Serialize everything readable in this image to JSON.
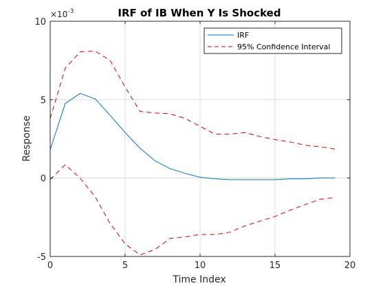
{
  "chart_data": {
    "type": "line",
    "title": "IRF of IB When Y Is Shocked",
    "xlabel": "Time Index",
    "ylabel": "Response",
    "y_exponent_label": "×10",
    "y_exponent_power": "-3",
    "xlim": [
      0,
      20
    ],
    "ylim": [
      -5,
      10
    ],
    "x_ticks": [
      0,
      5,
      10,
      15,
      20
    ],
    "y_ticks": [
      -5,
      0,
      5,
      10
    ],
    "grid": true,
    "legend_position": "top-right",
    "x": [
      0,
      1,
      2,
      3,
      4,
      5,
      6,
      7,
      8,
      9,
      10,
      11,
      12,
      13,
      14,
      15,
      16,
      17,
      18,
      19
    ],
    "series": [
      {
        "name": "IRF",
        "color": "#0072BD",
        "style": "solid",
        "values": [
          1.8,
          4.75,
          5.4,
          5.05,
          4.0,
          2.9,
          1.9,
          1.1,
          0.6,
          0.3,
          0.05,
          -0.05,
          -0.1,
          -0.1,
          -0.1,
          -0.1,
          -0.05,
          -0.05,
          0.0,
          0.0
        ]
      },
      {
        "name": "95% Confidence Interval",
        "color": "#D40000",
        "style": "dashed",
        "values": [
          3.8,
          7.0,
          8.05,
          8.1,
          7.5,
          5.8,
          4.25,
          4.15,
          4.1,
          3.8,
          3.3,
          2.8,
          2.8,
          2.9,
          2.65,
          2.45,
          2.3,
          2.1,
          2.0,
          1.85
        ]
      },
      {
        "name": "",
        "color": "#D40000",
        "style": "dashed",
        "values": [
          -0.1,
          0.85,
          0.0,
          -1.2,
          -2.9,
          -4.2,
          -4.9,
          -4.55,
          -3.85,
          -3.75,
          -3.6,
          -3.6,
          -3.45,
          -3.05,
          -2.75,
          -2.45,
          -2.05,
          -1.7,
          -1.35,
          -1.25
        ]
      }
    ]
  }
}
